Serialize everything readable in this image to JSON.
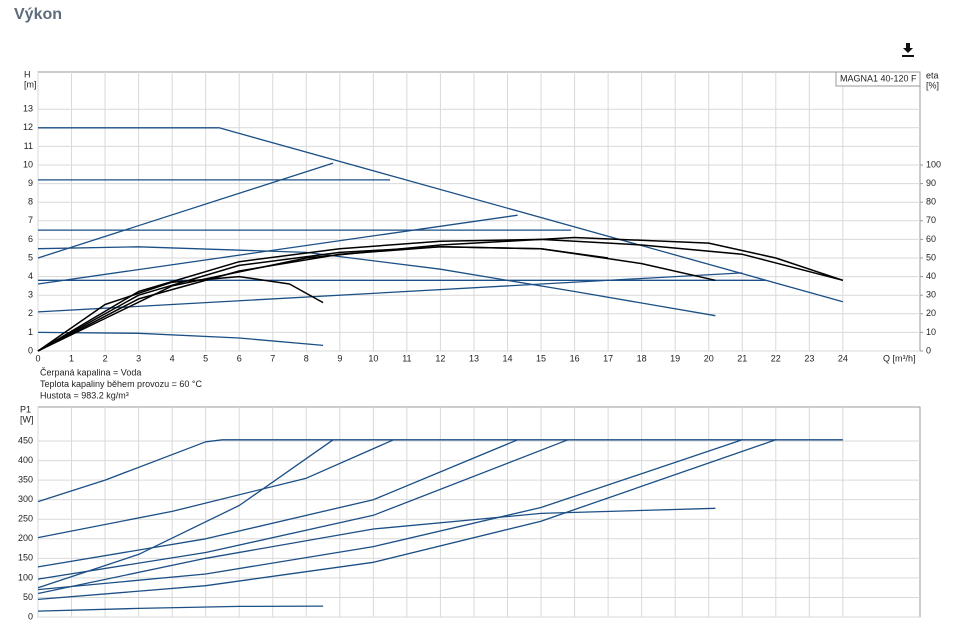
{
  "header": {
    "title": "Výkon"
  },
  "chart_data": [
    {
      "type": "line",
      "y_label": [
        "H",
        "[m]"
      ],
      "y2_label": [
        "eta",
        "[%]"
      ],
      "x_label": "Q [m³/h]",
      "legend_text": "MAGNA1 40-120 F",
      "notes": [
        "Čerpaná kapalina = Voda",
        "Teplota kapaliny během provozu = 60 °C",
        "Hustota = 983.2 kg/m³"
      ],
      "xlim": [
        0,
        26.3
      ],
      "xticks": [
        0,
        1,
        2,
        3,
        4,
        5,
        6,
        7,
        8,
        9,
        10,
        11,
        12,
        13,
        14,
        15,
        16,
        17,
        18,
        19,
        20,
        21,
        22,
        23,
        24
      ],
      "ylim": [
        0,
        15
      ],
      "yticks": [
        0,
        1,
        2,
        3,
        4,
        5,
        6,
        7,
        8,
        9,
        10,
        11,
        12,
        13
      ],
      "y2lim": [
        0,
        150
      ],
      "y2ticks": [
        0,
        10,
        20,
        30,
        40,
        50,
        60,
        70,
        80,
        90,
        100
      ],
      "grid": true,
      "series": [
        {
          "color": "#1b4f86",
          "x": [
            0,
            5.4,
            24
          ],
          "values": [
            12,
            12,
            2.65
          ]
        },
        {
          "color": "#1b4f86",
          "x": [
            0,
            10.5
          ],
          "values": [
            9.2,
            9.2
          ]
        },
        {
          "color": "#1b4f86",
          "x": [
            0,
            15.9
          ],
          "values": [
            6.5,
            6.5
          ]
        },
        {
          "color": "#1b4f86",
          "x": [
            0,
            21.7
          ],
          "values": [
            3.8,
            3.8
          ]
        },
        {
          "color": "#1b4f86",
          "x": [
            0,
            8.8
          ],
          "values": [
            5,
            10.1
          ]
        },
        {
          "color": "#1b4f86",
          "x": [
            0,
            14.3
          ],
          "values": [
            3.6,
            7.3
          ]
        },
        {
          "color": "#1b4f86",
          "x": [
            0,
            21
          ],
          "values": [
            2.1,
            4.2
          ]
        },
        {
          "color": "#1b4f86",
          "x": [
            0,
            3,
            8,
            12,
            16,
            20.2
          ],
          "values": [
            5.5,
            5.6,
            5.3,
            4.4,
            3.2,
            1.9
          ]
        },
        {
          "color": "#1b4f86",
          "x": [
            0,
            3,
            6,
            8.5
          ],
          "values": [
            1,
            0.95,
            0.7,
            0.3
          ]
        },
        {
          "color": "#000000",
          "axis": "y2",
          "x": [
            0,
            2,
            4,
            6,
            7.5,
            8.5
          ],
          "values": [
            0,
            25,
            37,
            40,
            36,
            26
          ]
        },
        {
          "color": "#000000",
          "axis": "y2",
          "x": [
            0,
            3,
            6,
            9,
            12,
            15,
            18,
            20.2
          ],
          "values": [
            0,
            30,
            46,
            53,
            56,
            55,
            47,
            38
          ]
        },
        {
          "color": "#000000",
          "axis": "y2",
          "x": [
            0,
            3,
            6,
            9,
            12,
            15,
            18,
            21,
            24
          ],
          "values": [
            0,
            32,
            48,
            55,
            59,
            60,
            57,
            52,
            38
          ]
        },
        {
          "color": "#000000",
          "axis": "y2",
          "x": [
            0,
            4,
            8,
            12,
            16,
            20,
            22,
            24
          ],
          "values": [
            0,
            35,
            50,
            57,
            61,
            58,
            50,
            38
          ]
        },
        {
          "color": "#000000",
          "axis": "y2",
          "x": [
            0,
            3,
            6,
            9,
            12,
            15,
            17
          ],
          "values": [
            0,
            28,
            43,
            52,
            56,
            55,
            50
          ]
        }
      ]
    },
    {
      "type": "line",
      "y_label": [
        "P1",
        "[W]"
      ],
      "xlim": [
        0,
        26.3
      ],
      "xticks": [
        0,
        1,
        2,
        3,
        4,
        5,
        6,
        7,
        8,
        9,
        10,
        11,
        12,
        13,
        14,
        15,
        16,
        17,
        18,
        19,
        20,
        21,
        22,
        23,
        24
      ],
      "ylim": [
        0,
        537
      ],
      "yticks": [
        0,
        50,
        100,
        150,
        200,
        250,
        300,
        350,
        400,
        450
      ],
      "grid": true,
      "series": [
        {
          "color": "#1b4f86",
          "x": [
            0,
            2,
            5,
            5.5,
            24
          ],
          "values": [
            295,
            350,
            448,
            453,
            453
          ]
        },
        {
          "color": "#1b4f86",
          "x": [
            0,
            4,
            8,
            10.6
          ],
          "values": [
            203,
            270,
            355,
            453
          ]
        },
        {
          "color": "#1b4f86",
          "x": [
            0,
            3,
            6,
            8.8
          ],
          "values": [
            75,
            160,
            285,
            453
          ]
        },
        {
          "color": "#1b4f86",
          "x": [
            0,
            5,
            10,
            14.3
          ],
          "values": [
            128,
            200,
            300,
            453
          ]
        },
        {
          "color": "#1b4f86",
          "x": [
            0,
            5,
            10,
            15.8
          ],
          "values": [
            97,
            165,
            260,
            453
          ]
        },
        {
          "color": "#1b4f86",
          "x": [
            0,
            5,
            10,
            15,
            21
          ],
          "values": [
            70,
            110,
            180,
            280,
            453
          ]
        },
        {
          "color": "#1b4f86",
          "x": [
            0,
            5,
            10,
            15,
            22
          ],
          "values": [
            45,
            80,
            140,
            245,
            453
          ]
        },
        {
          "color": "#1b4f86",
          "x": [
            0,
            5,
            10,
            15,
            20.2
          ],
          "values": [
            60,
            150,
            225,
            265,
            278
          ]
        },
        {
          "color": "#1b4f86",
          "x": [
            0,
            3,
            6,
            8.5
          ],
          "values": [
            15,
            22,
            27,
            28
          ]
        }
      ]
    }
  ]
}
